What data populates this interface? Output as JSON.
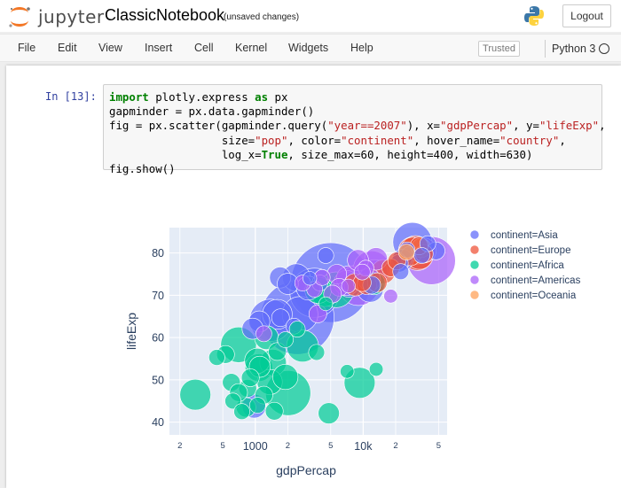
{
  "header": {
    "logo_text": "jupyter",
    "notebook_title": "ClassicNotebook",
    "save_status": "(unsaved changes)",
    "logout_label": "Logout"
  },
  "menubar": {
    "items": [
      "File",
      "Edit",
      "View",
      "Insert",
      "Cell",
      "Kernel",
      "Widgets",
      "Help"
    ],
    "trusted_label": "Trusted",
    "kernel_name": "Python 3"
  },
  "cell": {
    "prompt": "In [13]:",
    "code_lines": [
      [
        {
          "t": "import",
          "c": "kw"
        },
        {
          "t": " plotly.express "
        },
        {
          "t": "as",
          "c": "kw"
        },
        {
          "t": " px"
        }
      ],
      [
        {
          "t": "gapminder = px.data.gapminder()"
        }
      ],
      [
        {
          "t": "fig = px.scatter(gapminder.query("
        },
        {
          "t": "\"year==2007\"",
          "c": "str"
        },
        {
          "t": "), x="
        },
        {
          "t": "\"gdpPercap\"",
          "c": "str"
        },
        {
          "t": ", y="
        },
        {
          "t": "\"lifeExp\"",
          "c": "str"
        },
        {
          "t": ","
        }
      ],
      [
        {
          "t": "                 size="
        },
        {
          "t": "\"pop\"",
          "c": "str"
        },
        {
          "t": ", color="
        },
        {
          "t": "\"continent\"",
          "c": "str"
        },
        {
          "t": ", hover_name="
        },
        {
          "t": "\"country\"",
          "c": "str"
        },
        {
          "t": ","
        }
      ],
      [
        {
          "t": "                 log_x="
        },
        {
          "t": "True",
          "c": "kw"
        },
        {
          "t": ", size_max=60, height=400, width=630)"
        }
      ],
      [
        {
          "t": "fig.show()"
        }
      ]
    ]
  },
  "chart_data": {
    "type": "scatter",
    "title": "",
    "xlabel": "gdpPercap",
    "ylabel": "lifeExp",
    "x_scale": "log",
    "xlim": [
      160,
      60000
    ],
    "ylim": [
      37,
      86
    ],
    "grid": true,
    "legend_placement": "right",
    "x_ticks": [
      {
        "value": 200,
        "label": "2",
        "major": false
      },
      {
        "value": 500,
        "label": "5",
        "major": false
      },
      {
        "value": 1000,
        "label": "1000",
        "major": true
      },
      {
        "value": 2000,
        "label": "2",
        "major": false
      },
      {
        "value": 5000,
        "label": "5",
        "major": false
      },
      {
        "value": 10000,
        "label": "10k",
        "major": true
      },
      {
        "value": 20000,
        "label": "2",
        "major": false
      },
      {
        "value": 50000,
        "label": "5",
        "major": false
      }
    ],
    "y_ticks": [
      40,
      50,
      60,
      70,
      80
    ],
    "series": [
      {
        "name": "continent=Asia",
        "color": "#636efa",
        "points": [
          {
            "x": 5000,
            "y": 73,
            "size": 1.0
          },
          {
            "x": 2450,
            "y": 64.7,
            "size": 0.85
          },
          {
            "x": 3540,
            "y": 70.6,
            "size": 0.38
          },
          {
            "x": 2600,
            "y": 65.5,
            "size": 0.2
          },
          {
            "x": 1390,
            "y": 64.1,
            "size": 0.28
          },
          {
            "x": 1600,
            "y": 65.5,
            "size": 0.14
          },
          {
            "x": 28600,
            "y": 82.6,
            "size": 0.24
          },
          {
            "x": 2400,
            "y": 74.2,
            "size": 0.12
          },
          {
            "x": 11600,
            "y": 71.5,
            "size": 0.11
          },
          {
            "x": 7450,
            "y": 72.5,
            "size": 0.1
          },
          {
            "x": 3100,
            "y": 71.7,
            "size": 0.09
          },
          {
            "x": 1700,
            "y": 74.2,
            "size": 0.07
          },
          {
            "x": 2000,
            "y": 72.7,
            "size": 0.07
          },
          {
            "x": 23000,
            "y": 78.6,
            "size": 0.06
          },
          {
            "x": 23400,
            "y": 78.4,
            "size": 0.07
          },
          {
            "x": 974,
            "y": 43.8,
            "size": 0.09
          },
          {
            "x": 1090,
            "y": 63.8,
            "size": 0.07
          },
          {
            "x": 944,
            "y": 62.1,
            "size": 0.07
          },
          {
            "x": 12000,
            "y": 72.4,
            "size": 0.05
          },
          {
            "x": 47300,
            "y": 80.5,
            "size": 0.05
          },
          {
            "x": 39700,
            "y": 82.2,
            "size": 0.04
          },
          {
            "x": 25500,
            "y": 80.7,
            "size": 0.04
          },
          {
            "x": 4500,
            "y": 79.4,
            "size": 0.04
          },
          {
            "x": 3970,
            "y": 72.9,
            "size": 0.04
          },
          {
            "x": 1713,
            "y": 64.7,
            "size": 0.05
          },
          {
            "x": 2280,
            "y": 62.7,
            "size": 0.04
          },
          {
            "x": 21600,
            "y": 77.6,
            "size": 0.05
          },
          {
            "x": 22300,
            "y": 75.6,
            "size": 0.04
          },
          {
            "x": 35000,
            "y": 79.4,
            "size": 0.04
          },
          {
            "x": 3200,
            "y": 74.0,
            "size": 0.03
          }
        ]
      },
      {
        "name": "continent=Europe",
        "color": "#ef553b",
        "points": [
          {
            "x": 32000,
            "y": 79.4,
            "size": 0.14
          },
          {
            "x": 30500,
            "y": 80.7,
            "size": 0.13
          },
          {
            "x": 28500,
            "y": 80.5,
            "size": 0.12
          },
          {
            "x": 33200,
            "y": 79.4,
            "size": 0.12
          },
          {
            "x": 8460,
            "y": 72.5,
            "size": 0.08
          },
          {
            "x": 28800,
            "y": 80.9,
            "size": 0.09
          },
          {
            "x": 15400,
            "y": 75.6,
            "size": 0.09
          },
          {
            "x": 10800,
            "y": 72.5,
            "size": 0.06
          },
          {
            "x": 13500,
            "y": 73.0,
            "size": 0.06
          },
          {
            "x": 36800,
            "y": 79.8,
            "size": 0.05
          },
          {
            "x": 33000,
            "y": 81.7,
            "size": 0.05
          },
          {
            "x": 18000,
            "y": 76.5,
            "size": 0.05
          },
          {
            "x": 20500,
            "y": 78.1,
            "size": 0.05
          },
          {
            "x": 27500,
            "y": 79.3,
            "size": 0.06
          },
          {
            "x": 9800,
            "y": 73.0,
            "size": 0.05
          }
        ]
      },
      {
        "name": "continent=Africa",
        "color": "#00cc96",
        "points": [
          {
            "x": 2014,
            "y": 46.9,
            "size": 0.32
          },
          {
            "x": 700,
            "y": 58.3,
            "size": 0.2
          },
          {
            "x": 278,
            "y": 46.5,
            "size": 0.15
          },
          {
            "x": 5600,
            "y": 71.3,
            "size": 0.2
          },
          {
            "x": 2740,
            "y": 58.0,
            "size": 0.16
          },
          {
            "x": 9270,
            "y": 49.3,
            "size": 0.15
          },
          {
            "x": 1080,
            "y": 52.9,
            "size": 0.12
          },
          {
            "x": 1360,
            "y": 49.5,
            "size": 0.1
          },
          {
            "x": 4400,
            "y": 70.6,
            "size": 0.12
          },
          {
            "x": 3820,
            "y": 71.2,
            "size": 0.11
          },
          {
            "x": 1460,
            "y": 54.1,
            "size": 0.11
          },
          {
            "x": 1900,
            "y": 50.7,
            "size": 0.1
          },
          {
            "x": 1042,
            "y": 54.5,
            "size": 0.1
          },
          {
            "x": 1270,
            "y": 60.0,
            "size": 0.09
          },
          {
            "x": 12570,
            "y": 72.8,
            "size": 0.08
          },
          {
            "x": 4800,
            "y": 42.1,
            "size": 0.07
          },
          {
            "x": 1100,
            "y": 53.1,
            "size": 0.07
          },
          {
            "x": 820,
            "y": 43.5,
            "size": 0.06
          },
          {
            "x": 850,
            "y": 48.0,
            "size": 0.05
          },
          {
            "x": 1500,
            "y": 42.6,
            "size": 0.05
          },
          {
            "x": 600,
            "y": 49.4,
            "size": 0.05
          },
          {
            "x": 1600,
            "y": 56.7,
            "size": 0.05
          },
          {
            "x": 530,
            "y": 56.0,
            "size": 0.05
          },
          {
            "x": 700,
            "y": 47.0,
            "size": 0.05
          },
          {
            "x": 900,
            "y": 50.5,
            "size": 0.05
          },
          {
            "x": 1200,
            "y": 46.4,
            "size": 0.05
          },
          {
            "x": 620,
            "y": 45.0,
            "size": 0.04
          },
          {
            "x": 1050,
            "y": 44.0,
            "size": 0.04
          },
          {
            "x": 1900,
            "y": 59.5,
            "size": 0.04
          },
          {
            "x": 3700,
            "y": 56.5,
            "size": 0.04
          },
          {
            "x": 7100,
            "y": 52.0,
            "size": 0.03
          },
          {
            "x": 13200,
            "y": 52.5,
            "size": 0.03
          },
          {
            "x": 440,
            "y": 55.3,
            "size": 0.04
          },
          {
            "x": 750,
            "y": 42.5,
            "size": 0.04
          },
          {
            "x": 2450,
            "y": 62.0,
            "size": 0.04
          },
          {
            "x": 4500,
            "y": 68.0,
            "size": 0.03
          }
        ]
      },
      {
        "name": "continent=Americas",
        "color": "#ab63fa",
        "points": [
          {
            "x": 42950,
            "y": 78.2,
            "size": 0.36
          },
          {
            "x": 9070,
            "y": 72.4,
            "size": 0.26
          },
          {
            "x": 11980,
            "y": 76.2,
            "size": 0.21
          },
          {
            "x": 7000,
            "y": 72.9,
            "size": 0.1
          },
          {
            "x": 36300,
            "y": 80.6,
            "size": 0.1
          },
          {
            "x": 12780,
            "y": 75.3,
            "size": 0.11
          },
          {
            "x": 7400,
            "y": 74.0,
            "size": 0.1
          },
          {
            "x": 11400,
            "y": 73.7,
            "size": 0.08
          },
          {
            "x": 13170,
            "y": 78.6,
            "size": 0.08
          },
          {
            "x": 8950,
            "y": 78.3,
            "size": 0.07
          },
          {
            "x": 5700,
            "y": 75.0,
            "size": 0.06
          },
          {
            "x": 6000,
            "y": 71.9,
            "size": 0.05
          },
          {
            "x": 5200,
            "y": 70.3,
            "size": 0.05
          },
          {
            "x": 3800,
            "y": 65.6,
            "size": 0.05
          },
          {
            "x": 3550,
            "y": 71.4,
            "size": 0.04
          },
          {
            "x": 4170,
            "y": 74.2,
            "size": 0.04
          },
          {
            "x": 10600,
            "y": 76.4,
            "size": 0.04
          },
          {
            "x": 9800,
            "y": 75.5,
            "size": 0.04
          },
          {
            "x": 2750,
            "y": 72.9,
            "size": 0.04
          },
          {
            "x": 1200,
            "y": 60.9,
            "size": 0.04
          },
          {
            "x": 18000,
            "y": 69.8,
            "size": 0.03
          },
          {
            "x": 7300,
            "y": 72.2,
            "size": 0.03
          }
        ]
      },
      {
        "name": "continent=Oceania",
        "color": "#ffa15a",
        "points": [
          {
            "x": 34400,
            "y": 81.2,
            "size": 0.06
          },
          {
            "x": 25200,
            "y": 80.2,
            "size": 0.04
          }
        ]
      }
    ]
  }
}
